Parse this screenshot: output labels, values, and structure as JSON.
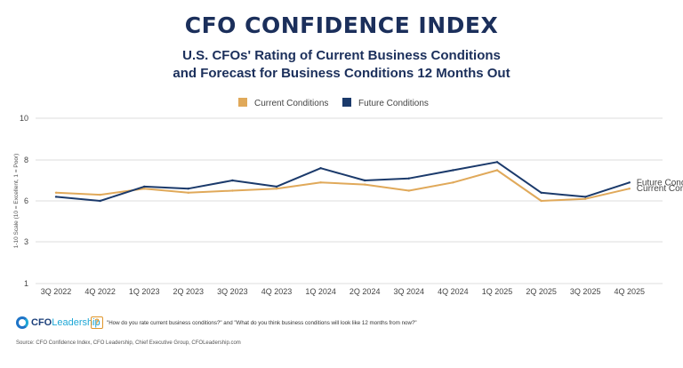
{
  "title": "CFO CONFIDENCE INDEX",
  "subtitle_line1": "U.S. CFOs' Rating of Current Business Conditions",
  "subtitle_line2": "and Forecast for Business Conditions 12 Months Out",
  "chart_data": {
    "type": "line",
    "ylabel": "1-10 Scale (10 = Excellent, 1 = Poor)",
    "y_ticks": [
      10,
      8,
      6,
      3,
      1
    ],
    "ylim": [
      1,
      10
    ],
    "grid": true,
    "legend_placement": "top-center",
    "categories": [
      "3Q 2022",
      "4Q 2022",
      "1Q 2023",
      "2Q 2023",
      "3Q 2023",
      "4Q 2023",
      "1Q 2024",
      "2Q 2024",
      "3Q 2024",
      "4Q 2024",
      "1Q 2025",
      "2Q 2025",
      "3Q 2025",
      "4Q 2025"
    ],
    "series": [
      {
        "name": "Current Conditions",
        "color": "#e0a95a",
        "values": [
          6.4,
          6.3,
          6.6,
          6.4,
          6.5,
          6.6,
          6.9,
          6.8,
          6.5,
          6.9,
          7.5,
          6.0,
          6.1,
          6.6
        ]
      },
      {
        "name": "Future Conditions",
        "color": "#1b3a6b",
        "values": [
          6.2,
          6.0,
          6.7,
          6.6,
          7.0,
          6.7,
          7.6,
          7.0,
          7.1,
          7.5,
          7.9,
          6.4,
          6.2,
          6.9
        ]
      }
    ],
    "end_labels": [
      "Future Conditions",
      "Current Conditions"
    ]
  },
  "footer": {
    "logo_prefix": "CFO",
    "logo_suffix": "Leadership",
    "question_icon": "question-bubble-icon",
    "question": "\"How do you rate current business conditions?\" and \"What do you think business conditions will look like 12 months from now?\"",
    "source": "Source: CFO Confidence Index, CFO Leadership, Chief Executive Group, CFOLeadership.com"
  }
}
